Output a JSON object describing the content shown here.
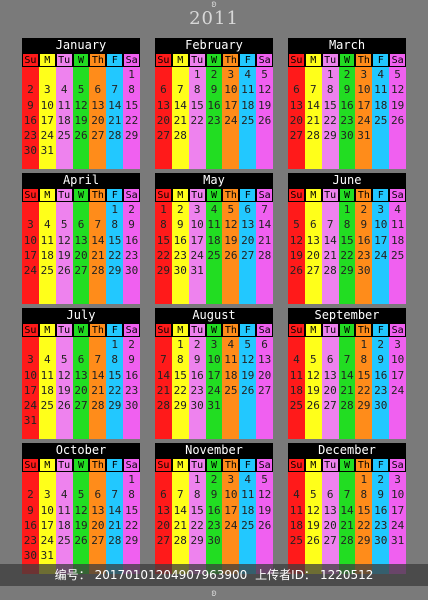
{
  "year": "2011",
  "weekday_headers": [
    "Su",
    "M",
    "Tu",
    "W",
    "Th",
    "F",
    "Sa"
  ],
  "colors": [
    "#ff1a1a",
    "#ffff1a",
    "#ee82ee",
    "#22dd22",
    "#ff8c1a",
    "#22c8ff",
    "#f060f0"
  ],
  "months": [
    {
      "name": "January",
      "start": 6,
      "days": 31
    },
    {
      "name": "February",
      "start": 2,
      "days": 28
    },
    {
      "name": "March",
      "start": 2,
      "days": 31
    },
    {
      "name": "April",
      "start": 5,
      "days": 30
    },
    {
      "name": "May",
      "start": 0,
      "days": 31
    },
    {
      "name": "June",
      "start": 3,
      "days": 30
    },
    {
      "name": "July",
      "start": 5,
      "days": 31
    },
    {
      "name": "August",
      "start": 1,
      "days": 31
    },
    {
      "name": "September",
      "start": 4,
      "days": 30
    },
    {
      "name": "October",
      "start": 6,
      "days": 31
    },
    {
      "name": "November",
      "start": 2,
      "days": 30
    },
    {
      "name": "December",
      "start": 4,
      "days": 31
    }
  ],
  "footer": {
    "label_number": "编号：",
    "number": "20170101204907963900",
    "label_uploader": "上传者ID：",
    "uploader_id": "1220512"
  }
}
